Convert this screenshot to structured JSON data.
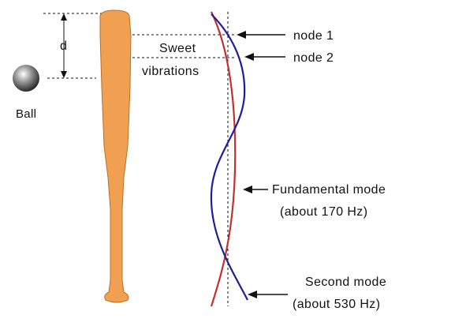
{
  "labels": {
    "d": "d",
    "sweet": "Sweet",
    "vibrations": "vibrations",
    "ball": "Ball",
    "node1": "node 1",
    "node2": "node 2",
    "fundamental_line1": "Fundamental mode",
    "fundamental_line2": "(about 170 Hz)",
    "second_line1": "Second mode",
    "second_line2": "(about 530 Hz)"
  },
  "colors": {
    "bat": "#F0A050",
    "bat_outline": "#B8702A",
    "fundamental_mode": "#C0302E",
    "second_mode": "#1E1E9A",
    "ball": "#888888"
  }
}
